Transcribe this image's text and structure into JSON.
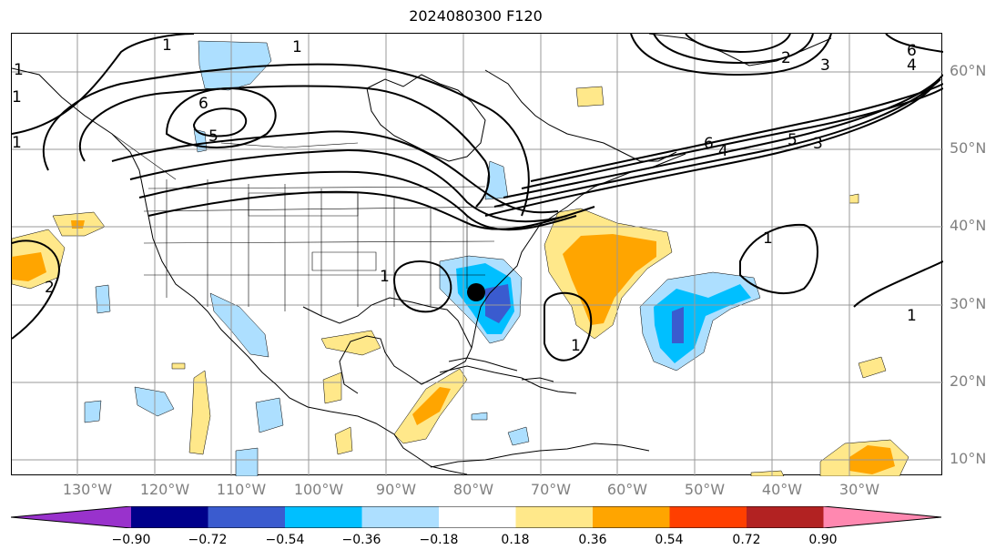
{
  "title": "2024080300 F120",
  "lat_labels": [
    "60°N",
    "50°N",
    "40°N",
    "30°N",
    "20°N",
    "10°N"
  ],
  "lon_labels": [
    "130°W",
    "120°W",
    "110°W",
    "100°W",
    "90°W",
    "80°W",
    "70°W",
    "60°W",
    "50°W",
    "40°W",
    "30°W"
  ],
  "colorbar": {
    "ticks": [
      "−0.90",
      "−0.72",
      "−0.54",
      "−0.36",
      "−0.18",
      "0.18",
      "0.36",
      "0.54",
      "0.72",
      "0.90"
    ],
    "colors": [
      "#9932CC",
      "#00008B",
      "#3A5BCF",
      "#00BFFF",
      "#ADDFFF",
      "#FFFFFF",
      "#FFE88A",
      "#FFA500",
      "#FF3F00",
      "#B22222",
      "#FF88B0"
    ]
  },
  "contour_labels": [
    "1",
    "1",
    "1",
    "6",
    "5",
    "1",
    "2",
    "3",
    "6",
    "4",
    "6",
    "4",
    "5",
    "3",
    "1",
    "1",
    "1",
    "1",
    "1",
    "2"
  ],
  "marker": "storm-center-dot"
}
